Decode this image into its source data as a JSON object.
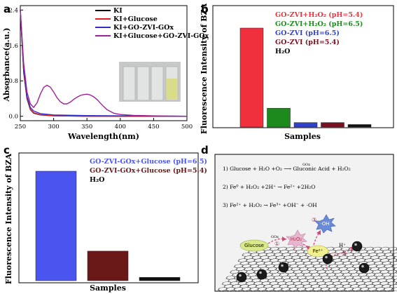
{
  "panels": {
    "a": "a",
    "b": "b",
    "c": "c",
    "d": "d"
  },
  "chart_data": [
    {
      "type": "line",
      "xlabel": "Wavelength(nm)",
      "ylabel": "Absorbance(a.u.)",
      "xlim": [
        250,
        500
      ],
      "ylim": [
        -0.1,
        2.5
      ],
      "xticks": [
        250,
        300,
        350,
        400,
        450,
        500
      ],
      "yticks": [
        0.0,
        0.8,
        1.6,
        2.4
      ],
      "ytick_labels": [
        "0.0",
        "0.8",
        "1.6",
        "2.4"
      ],
      "legend_position": "top-right",
      "series": [
        {
          "name": "KI",
          "color": "#000000",
          "x": [
            250,
            255,
            260,
            265,
            270,
            280,
            300,
            350,
            400,
            450,
            500
          ],
          "y": [
            2.4,
            1.0,
            0.4,
            0.15,
            0.07,
            0.03,
            0.01,
            0.0,
            0.0,
            0.0,
            0.0
          ]
        },
        {
          "name": "KI+Glucose",
          "color": "#e02020",
          "x": [
            250,
            255,
            260,
            265,
            270,
            280,
            300,
            350,
            400,
            450,
            500
          ],
          "y": [
            2.4,
            1.05,
            0.42,
            0.16,
            0.08,
            0.035,
            0.012,
            0.0,
            0.0,
            0.0,
            0.0
          ]
        },
        {
          "name": "KI+GO-ZVI-GOx",
          "color": "#3030c8",
          "x": [
            250,
            255,
            260,
            265,
            270,
            280,
            300,
            350,
            400,
            450,
            500
          ],
          "y": [
            2.4,
            1.1,
            0.45,
            0.2,
            0.12,
            0.06,
            0.03,
            0.015,
            0.01,
            0.005,
            0.0
          ]
        },
        {
          "name": "KI+Glucose+GO-ZVI-GOx",
          "color": "#a0209a",
          "x": [
            250,
            255,
            260,
            265,
            270,
            275,
            280,
            285,
            290,
            295,
            300,
            305,
            310,
            315,
            320,
            325,
            330,
            335,
            340,
            345,
            350,
            355,
            360,
            365,
            370,
            375,
            380,
            390,
            400,
            420,
            450,
            500
          ],
          "y": [
            2.4,
            1.2,
            0.55,
            0.28,
            0.2,
            0.3,
            0.5,
            0.65,
            0.7,
            0.66,
            0.55,
            0.42,
            0.33,
            0.28,
            0.28,
            0.32,
            0.38,
            0.43,
            0.47,
            0.49,
            0.5,
            0.48,
            0.44,
            0.38,
            0.3,
            0.22,
            0.15,
            0.07,
            0.04,
            0.02,
            0.01,
            0.0
          ]
        }
      ]
    },
    {
      "type": "bar",
      "xlabel": "Samples",
      "ylabel": "Fluorescence Intensity of BZA",
      "legend_position": "top-right",
      "series": [
        {
          "name": "GO-ZVI+H₂O₂ (pH=5.4)",
          "color": "#f0303c",
          "value": 100
        },
        {
          "name": "GO-ZVI+H₂O₂ (pH=6.5)",
          "color": "#1c8a1c",
          "value": 19
        },
        {
          "name": "GO-ZVI (pH=6.5)",
          "color": "#3040d0",
          "value": 4.5
        },
        {
          "name": "GO-ZVI (pH=5.4)",
          "color": "#7a1020",
          "value": 4.5
        },
        {
          "name": "H₂O",
          "color": "#111111",
          "value": 2.5
        }
      ]
    },
    {
      "type": "bar",
      "xlabel": "Samples",
      "ylabel": "Fluorescence Intensity of BZA",
      "legend_position": "top-right",
      "series": [
        {
          "name": "GO-ZVI-GOx+Glucose (pH=6.5)",
          "color": "#4a55f0",
          "value": 100
        },
        {
          "name": "GO-ZVI-GOx+Glucose (pH=5.4)",
          "color": "#6a1818",
          "value": 27
        },
        {
          "name": "H₂O",
          "color": "#111111",
          "value": 3
        }
      ]
    }
  ],
  "scheme": {
    "eq1": "1) Glucose + H₂O +O₂ ⟶ Gluconic Acid + H₂O₂",
    "eq1_catalyst": "GOx",
    "eq2": "2) Fe⁰ + H₂O₂ +2H⁺ → Fe²⁺ +2H₂O",
    "eq3": "3) Fe²⁺ + H₂O₂ → Fe³⁺ +OH⁻ + ·OH",
    "oh_label": "·OH",
    "h2o2_label": "H₂O₂",
    "glucose_label": "Glucose",
    "fe2_label": "Fe²⁺",
    "gox_label": "GOx",
    "h_label": "H⁺",
    "step1": "①",
    "step2": "②",
    "step3": "③",
    "particle_label": "Fe"
  }
}
